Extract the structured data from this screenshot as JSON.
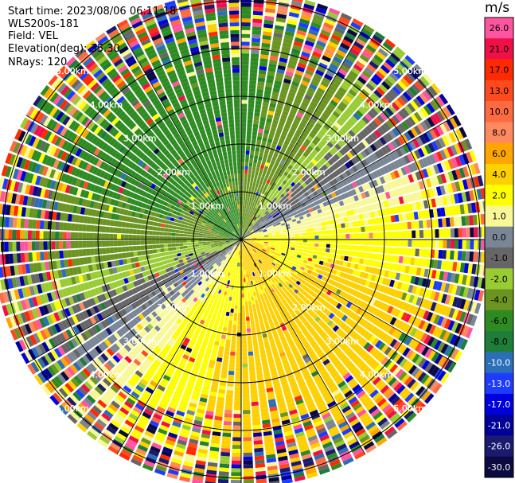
{
  "header": {
    "start_time": "Start time: 2023/08/06 06:11:18",
    "instrument": "WLS200s-181",
    "field": "Field: VEL",
    "elevation": "Elevation(deg): 35.30",
    "nrays": "NRays: 120"
  },
  "chart_data": {
    "type": "heatmap",
    "subtype": "polar-ppi",
    "field": "VEL",
    "units": "m/s",
    "n_rays": 120,
    "range_rings": [
      {
        "range_km": 1.0,
        "label": "1.00km"
      },
      {
        "range_km": 2.0,
        "label": "2.00km"
      },
      {
        "range_km": 3.0,
        "label": "3.00km"
      },
      {
        "range_km": 4.0,
        "label": "4.00km"
      },
      {
        "range_km": 5.0,
        "label": "5.00km"
      }
    ],
    "max_range_km": 5.2,
    "spoke_azimuths_deg": [
      30,
      60,
      120,
      150,
      210,
      240,
      300,
      330
    ],
    "colorbar": {
      "unit_label": "m/s",
      "ticks": [
        "26.0",
        "21.0",
        "17.0",
        "13.0",
        "10.0",
        "8.0",
        "6.0",
        "4.0",
        "2.0",
        "1.0",
        "0.0",
        "-1.0",
        "-2.0",
        "-4.0",
        "-6.0",
        "-8.0",
        "-10.0",
        "-13.0",
        "-17.0",
        "-21.0",
        "-26.0",
        "-30.0"
      ],
      "colors": [
        "#ff55a0",
        "#f01048",
        "#ff2a00",
        "#ff4a1e",
        "#ff6a40",
        "#ff8a60",
        "#ffa500",
        "#ffd000",
        "#ffff00",
        "#f8f898",
        "#7a8696",
        "#666666",
        "#99cc33",
        "#6b9420",
        "#2e8b22",
        "#1f7d3a",
        "#2a6fb8",
        "#1e3cff",
        "#0000dd",
        "#000099",
        "#1a1a6e",
        "#0a0a40"
      ],
      "bounds": [
        30,
        26,
        21,
        17,
        13,
        10,
        8,
        6,
        4,
        2,
        1,
        0,
        -1,
        -2,
        -4,
        -6,
        -8,
        -10,
        -13,
        -17,
        -21,
        -26,
        -30
      ]
    }
  }
}
